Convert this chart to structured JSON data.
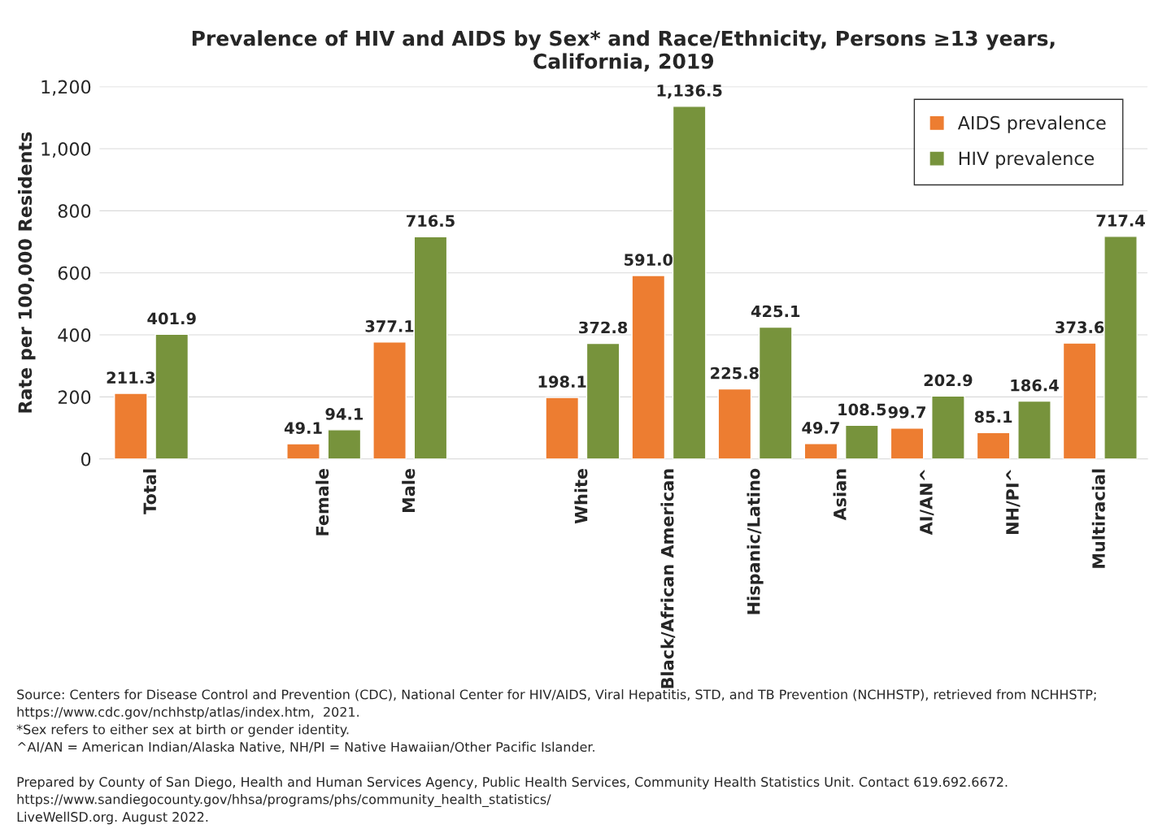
{
  "chart_data": {
    "type": "bar",
    "title": "Prevalence of HIV and AIDS by Sex* and Race/Ethnicity, Persons ≥13 years,\nCalifornia, 2019",
    "ylabel": "Rate per 100,000 Residents",
    "categories": [
      "Total",
      null,
      "Female",
      "Male",
      null,
      "White",
      "Black/African American",
      "Hispanic/Latino",
      "Asian",
      "AI/AN^",
      "NH/PI^",
      "Multiracial"
    ],
    "series": [
      {
        "name": "AIDS prevalence",
        "color": "#ed7d31",
        "values": [
          211.3,
          null,
          49.1,
          377.1,
          null,
          198.1,
          591.0,
          225.8,
          49.7,
          99.7,
          85.1,
          373.6
        ],
        "value_labels": [
          "211.3",
          null,
          "49.1",
          "377.1",
          null,
          "198.1",
          "591.0",
          "225.8",
          "49.7",
          "99.7",
          "85.1",
          "373.6"
        ]
      },
      {
        "name": "HIV prevalence",
        "color": "#77933c",
        "values": [
          401.9,
          null,
          94.1,
          716.5,
          null,
          372.8,
          1136.5,
          425.1,
          108.5,
          202.9,
          186.4,
          717.4
        ],
        "value_labels": [
          "401.9",
          null,
          "94.1",
          "716.5",
          null,
          "372.8",
          "1,136.5",
          "425.1",
          "108.5",
          "202.9",
          "186.4",
          "717.4"
        ]
      }
    ],
    "ylim": [
      0,
      1200
    ],
    "yticks": [
      {
        "value": 0,
        "label": "0"
      },
      {
        "value": 200,
        "label": "200"
      },
      {
        "value": 400,
        "label": "400"
      },
      {
        "value": 600,
        "label": "600"
      },
      {
        "value": 800,
        "label": "800"
      },
      {
        "value": 1000,
        "label": "1,000"
      },
      {
        "value": 1200,
        "label": "1,200"
      }
    ],
    "grid": "y",
    "legend": "top right",
    "annotations": [
      "Source: Centers for Disease Control and Prevention (CDC), National Center for HIV/AIDS, Viral Hepatitis, STD, and TB Prevention (NCHHSTP), retrieved from NCHHSTP;",
      "https://www.cdc.gov/nchhstp/atlas/index.htm,  2021.",
      "*Sex refers to either sex at birth or gender identity.",
      "^AI/AN = American Indian/Alaska Native, NH/PI = Native Hawaiian/Other Pacific Islander.",
      "Prepared by County of San Diego, Health and Human Services Agency, Public Health Services, Community Health Statistics Unit. Contact 619.692.6672.",
      "https://www.sandiegocounty.gov/hhsa/programs/phs/community_health_statistics/",
      "LiveWellSD.org. August 2022."
    ]
  }
}
